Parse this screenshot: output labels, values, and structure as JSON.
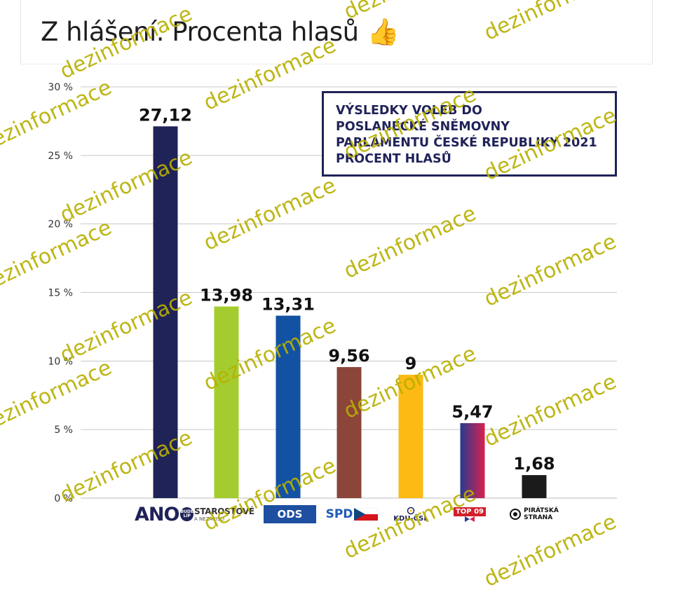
{
  "post": {
    "title": "Z hlášení. Procenta hlasů",
    "emoji": "👍"
  },
  "chart_data": {
    "type": "bar",
    "title_lines": [
      "VÝSLEDKY VOLEB DO",
      "POSLANECKÉ SNĚMOVNY",
      "PARLAMENTU ČESKÉ REPUBLIKY 2021",
      "PROCENT HLASŮ"
    ],
    "categories": [
      "ANO",
      "STAROSTOVÉ A NEZÁVISLÍ",
      "ODS",
      "SPD",
      "KDU-ČSL",
      "TOP 09",
      "PIRÁTSKÁ STRANA"
    ],
    "values": [
      27.12,
      13.98,
      13.31,
      9.56,
      9,
      5.47,
      1.68
    ],
    "data_labels": [
      "27,12",
      "13,98",
      "13,31",
      "9,56",
      "9",
      "5,47",
      "1,68"
    ],
    "colors": [
      "#1f2358",
      "#a5cc2e",
      "#1352a2",
      "#8b4539",
      "#fcba12",
      "#d9214f",
      "#1b1b1b"
    ],
    "top09_gradient": [
      "#283a8f",
      "#d9214f"
    ],
    "ylim": [
      0,
      30
    ],
    "yticks": [
      0,
      5,
      10,
      15,
      20,
      25,
      30
    ],
    "ytick_labels": [
      "0 %",
      "5 %",
      "10 %",
      "15 %",
      "20 %",
      "25 %",
      "30 %"
    ],
    "grid": "horizontal",
    "grid_color": "#c8c8c8"
  },
  "logos": {
    "ano": {
      "text": "ANO",
      "badge": "BUDE LÍP"
    },
    "stan": {
      "main": "STAROSTOVÉ",
      "sub": "A NEZÁVISLÍ"
    },
    "ods": {
      "text": "ODS"
    },
    "spd": {
      "text": "SPD"
    },
    "kdu": {
      "text": "KDU-ČSL"
    },
    "top09": {
      "text": "TOP 09"
    },
    "pirati": {
      "line1": "PIRÁTSKÁ",
      "line2": "STRANA"
    }
  },
  "watermark": {
    "text": "dezinformace",
    "color": "#b8b000"
  }
}
